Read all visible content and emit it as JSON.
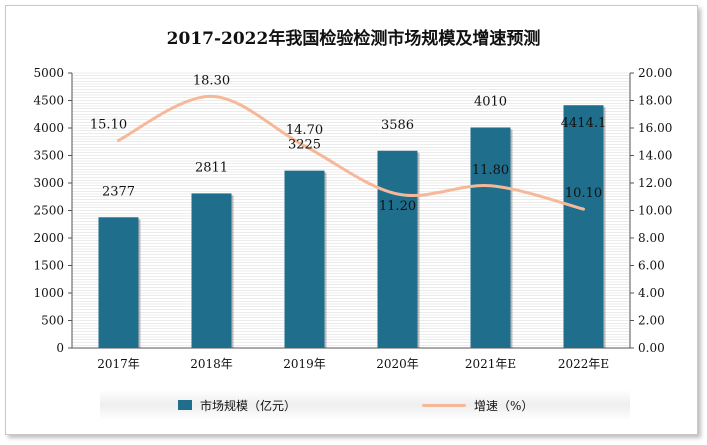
{
  "title": "2017-2022年我国检验检测市场规模及增速预测",
  "legend": {
    "bar_label": "市场规模（亿元）",
    "line_label": "增速（%）"
  },
  "colors": {
    "bar": "#1f6e8c",
    "line": "#f5b99a",
    "grid": "#d9d9d9"
  },
  "chart_data": {
    "type": "bar",
    "categories": [
      "2017年",
      "2018年",
      "2019年",
      "2020年",
      "2021年E",
      "2022年E"
    ],
    "series": [
      {
        "name": "市场规模（亿元）",
        "type": "bar",
        "axis": "left",
        "values": [
          2377,
          2811,
          3225,
          3586,
          4010,
          4414.1
        ],
        "labels": [
          "2377",
          "2811",
          "3225",
          "3586",
          "4010",
          "4414.1"
        ]
      },
      {
        "name": "增速（%）",
        "type": "line",
        "axis": "right",
        "values": [
          15.1,
          18.3,
          14.7,
          11.2,
          11.8,
          10.1
        ],
        "labels": [
          "15.10",
          "18.30",
          "14.70",
          "11.20",
          "11.80",
          "10.10"
        ]
      }
    ],
    "ylim": [
      0,
      5000
    ],
    "y2lim": [
      0,
      20
    ],
    "yticks": [
      "0",
      "500",
      "1000",
      "1500",
      "2000",
      "2500",
      "3000",
      "3500",
      "4000",
      "4500",
      "5000"
    ],
    "y2ticks": [
      "0.00",
      "2.00",
      "4.00",
      "6.00",
      "8.00",
      "10.00",
      "12.00",
      "14.00",
      "16.00",
      "18.00",
      "20.00"
    ],
    "grid": true,
    "legend_position": "bottom"
  }
}
